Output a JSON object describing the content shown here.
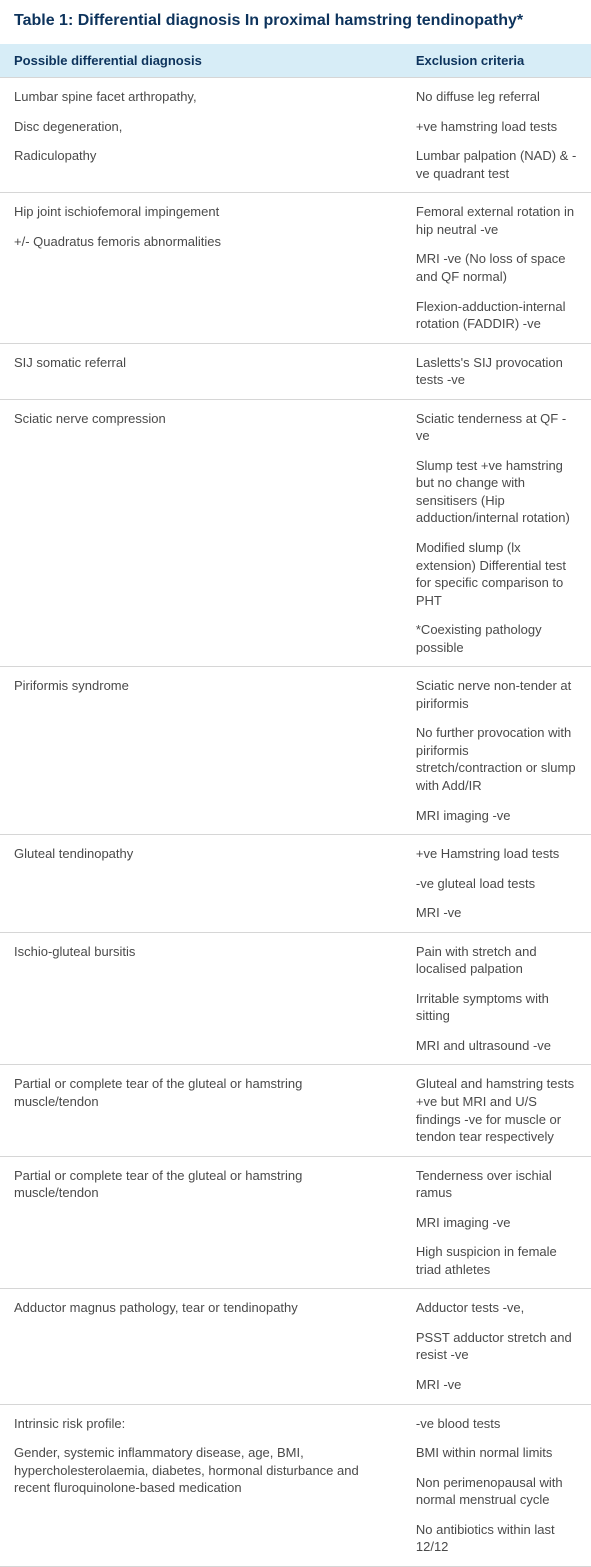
{
  "title": "Table 1: Differential diagnosis In proximal hamstring tendinopathy*",
  "columns": [
    "Possible differential diagnosis",
    "Exclusion criteria"
  ],
  "rows": [
    {
      "diag": [
        "Lumbar spine facet arthropathy,",
        "Disc degeneration,",
        "Radiculopathy"
      ],
      "excl": [
        "No diffuse leg referral",
        "+ve hamstring load tests",
        "Lumbar palpation (NAD) & -ve quadrant test"
      ]
    },
    {
      "diag": [
        "Hip joint ischiofemoral impingement",
        "+/- Quadratus femoris abnormalities"
      ],
      "excl": [
        "Femoral external rotation in hip neutral -ve",
        "MRI -ve (No loss of space and QF normal)",
        "Flexion-adduction-internal rotation (FADDIR) -ve"
      ]
    },
    {
      "diag": [
        "SIJ somatic referral"
      ],
      "excl": [
        "Lasletts's SIJ provocation tests -ve"
      ]
    },
    {
      "diag": [
        "Sciatic nerve compression"
      ],
      "excl": [
        "Sciatic tenderness at QF -ve",
        "Slump test  +ve hamstring but no change with sensitisers (Hip adduction/internal rotation)",
        "Modified slump (lx extension) Differential test for specific comparison to PHT",
        "*Coexisting pathology possible"
      ]
    },
    {
      "diag": [
        "Piriformis syndrome"
      ],
      "excl": [
        "Sciatic nerve non-tender at piriformis",
        "No further provocation with piriformis stretch/contraction or slump with Add/IR",
        "MRI imaging -ve"
      ]
    },
    {
      "diag": [
        "Gluteal tendinopathy"
      ],
      "excl": [
        "+ve Hamstring load tests",
        "-ve gluteal load tests",
        "MRI -ve"
      ]
    },
    {
      "diag": [
        "Ischio-gluteal bursitis"
      ],
      "excl": [
        "Pain with stretch and localised palpation",
        "Irritable symptoms with sitting",
        "MRI and ultrasound -ve"
      ]
    },
    {
      "diag": [
        "Partial or complete tear of the gluteal or hamstring muscle/tendon"
      ],
      "excl": [
        "Gluteal and hamstring tests +ve but MRI and U/S findings -ve for muscle or tendon tear respectively"
      ]
    },
    {
      "diag": [
        "Partial or complete tear of the gluteal or hamstring muscle/tendon"
      ],
      "excl": [
        "Tenderness over ischial ramus",
        "MRI imaging -ve",
        "High suspicion in female triad athletes"
      ]
    },
    {
      "diag": [
        "Adductor magnus pathology, tear or tendinopathy"
      ],
      "excl": [
        "Adductor tests -ve,",
        "PSST adductor stretch and resist -ve",
        "MRI -ve"
      ]
    },
    {
      "diag": [
        "Intrinsic risk profile:",
        "Gender, systemic inflammatory disease, age, BMI, hypercholesterolaemia, diabetes, hormonal disturbance and recent fluroquinolone-based medication"
      ],
      "excl": [
        "-ve blood tests",
        "BMI within normal limits",
        "Non perimenopausal with normal menstrual cycle",
        "No antibiotics within last 12/12"
      ]
    }
  ]
}
